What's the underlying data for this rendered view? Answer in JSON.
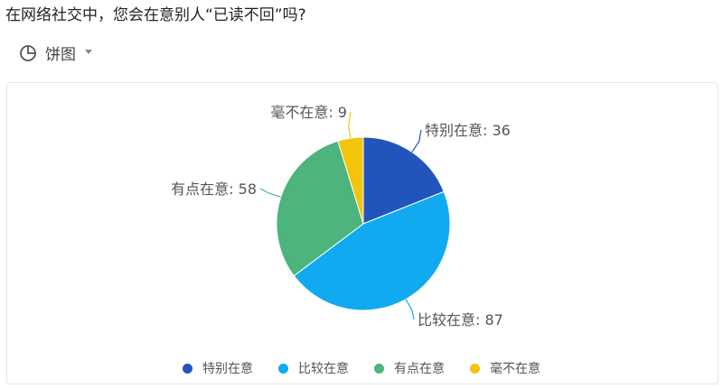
{
  "question": "在网络社交中，您会在意别人“已读不回”吗?",
  "chart_type_selector": {
    "label": "饼图",
    "icon": "pie-chart-icon"
  },
  "chart_data": {
    "type": "pie",
    "title": "",
    "categories": [
      "特别在意",
      "比较在意",
      "有点在意",
      "毫不在意"
    ],
    "values": [
      36,
      87,
      58,
      9
    ],
    "colors": [
      "#2255bb",
      "#11aaf0",
      "#4cb47c",
      "#f2c40c"
    ],
    "start_angle_deg": 0,
    "direction": "clockwise",
    "label_separator": ": ",
    "legend_position": "bottom"
  }
}
